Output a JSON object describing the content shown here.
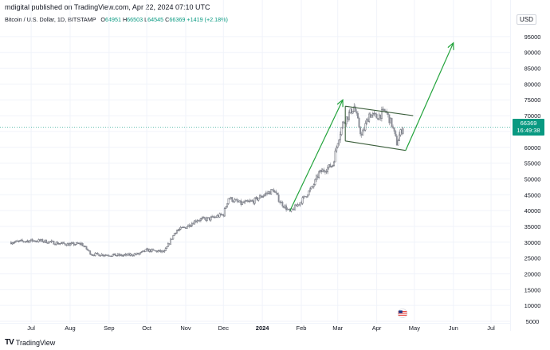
{
  "header": {
    "publish_line": "mdigital published on TradingView.com, Apr 22, 2024 07:10 UTC"
  },
  "legend": {
    "symbol": "Bitcoin / U.S. Dollar, 1D, BITSTAMP",
    "open_label": "O",
    "open_value": "64951",
    "high_label": "H",
    "high_value": "66503",
    "low_label": "L",
    "low_value": "64545",
    "close_label": "C",
    "close_value": "66369",
    "change": "+1419 (+2.18%)"
  },
  "currency": "USD",
  "price_box": {
    "price": "66369",
    "countdown": "16:49:38"
  },
  "footer": {
    "logo": "TV",
    "brand": "TradingView"
  },
  "colors": {
    "up": "#089981",
    "down": "#f23645",
    "candle": "#5d606b",
    "arrow": "#22a33b",
    "grid": "#f0f3fa"
  },
  "chart_data": {
    "type": "candlestick",
    "y_ticks": [
      5000,
      10000,
      15000,
      20000,
      25000,
      30000,
      35000,
      40000,
      45000,
      50000,
      55000,
      60000,
      65000,
      70000,
      75000,
      80000,
      85000,
      90000,
      95000
    ],
    "y_tick_labels": [
      "5000",
      "10000",
      "15000",
      "20000",
      "25000",
      "30000",
      "35000",
      "40000",
      "45000",
      "50000",
      "55000",
      "60000",
      "65000",
      "70000",
      "75000",
      "80000",
      "85000",
      "90000",
      "95000"
    ],
    "ylim": [
      5000,
      99000
    ],
    "x_ticks": [
      {
        "label": "Jul",
        "date": "2023-07-01"
      },
      {
        "label": "Aug",
        "date": "2023-08-01"
      },
      {
        "label": "Sep",
        "date": "2023-09-01"
      },
      {
        "label": "Oct",
        "date": "2023-10-01"
      },
      {
        "label": "Nov",
        "date": "2023-11-01"
      },
      {
        "label": "Dec",
        "date": "2023-12-01"
      },
      {
        "label": "2024",
        "date": "2024-01-01"
      },
      {
        "label": "Feb",
        "date": "2024-02-01"
      },
      {
        "label": "Mar",
        "date": "2024-03-01"
      },
      {
        "label": "Apr",
        "date": "2024-04-01"
      },
      {
        "label": "May",
        "date": "2024-05-01"
      },
      {
        "label": "Jun",
        "date": "2024-06-01"
      },
      {
        "label": "Jul",
        "date": "2024-07-01"
      }
    ],
    "price_path": [
      [
        "2023-06-15",
        30000
      ],
      [
        "2023-06-22",
        30200
      ],
      [
        "2023-07-01",
        30500
      ],
      [
        "2023-07-10",
        30400
      ],
      [
        "2023-07-20",
        29800
      ],
      [
        "2023-08-01",
        29300
      ],
      [
        "2023-08-10",
        29500
      ],
      [
        "2023-08-18",
        26200
      ],
      [
        "2023-09-01",
        26000
      ],
      [
        "2023-09-12",
        25800
      ],
      [
        "2023-09-25",
        26300
      ],
      [
        "2023-10-01",
        27500
      ],
      [
        "2023-10-15",
        26900
      ],
      [
        "2023-10-24",
        33500
      ],
      [
        "2023-11-01",
        34800
      ],
      [
        "2023-11-10",
        37100
      ],
      [
        "2023-11-20",
        37400
      ],
      [
        "2023-12-01",
        38800
      ],
      [
        "2023-12-05",
        44000
      ],
      [
        "2023-12-15",
        42200
      ],
      [
        "2023-12-25",
        43000
      ],
      [
        "2024-01-02",
        45000
      ],
      [
        "2024-01-10",
        46500
      ],
      [
        "2024-01-15",
        42800
      ],
      [
        "2024-01-23",
        39500
      ],
      [
        "2024-02-01",
        43000
      ],
      [
        "2024-02-10",
        47500
      ],
      [
        "2024-02-15",
        51800
      ],
      [
        "2024-02-26",
        54500
      ],
      [
        "2024-03-01",
        62000
      ],
      [
        "2024-03-05",
        67500
      ],
      [
        "2024-03-14",
        72800
      ],
      [
        "2024-03-20",
        63500
      ],
      [
        "2024-03-26",
        70500
      ],
      [
        "2024-04-01",
        69500
      ],
      [
        "2024-04-08",
        71500
      ],
      [
        "2024-04-13",
        67200
      ],
      [
        "2024-04-17",
        61300
      ],
      [
        "2024-04-19",
        63800
      ],
      [
        "2024-04-22",
        66369
      ]
    ],
    "current_price": 66369,
    "annotations": {
      "channel_upper": [
        [
          "2024-03-07",
          73000
        ],
        [
          "2024-04-30",
          70000
        ]
      ],
      "channel_lower": [
        [
          "2024-03-07",
          62000
        ],
        [
          "2024-04-24",
          59000
        ]
      ],
      "channel_left": [
        [
          "2024-03-07",
          73000
        ],
        [
          "2024-03-07",
          62000
        ]
      ],
      "arrow_1": [
        [
          "2024-01-23",
          40000
        ],
        [
          "2024-03-05",
          75000
        ]
      ],
      "arrow_2": [
        [
          "2024-04-24",
          59000
        ],
        [
          "2024-06-01",
          93000
        ]
      ]
    }
  }
}
